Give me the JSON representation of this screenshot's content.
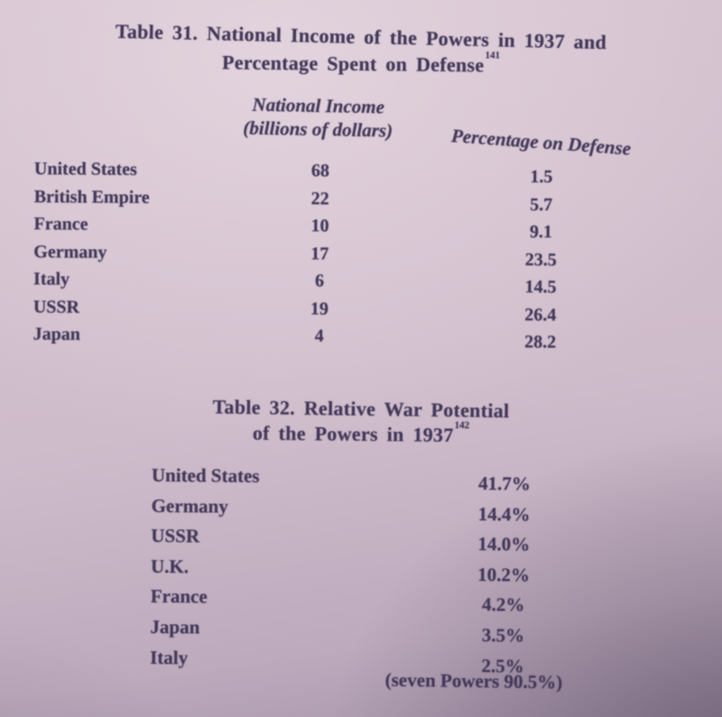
{
  "table31": {
    "title_line1": "Table 31. National Income of the Powers in 1937 and",
    "title_line2": "Percentage Spent on Defense",
    "footnote": "141",
    "col_income_line1": "National Income",
    "col_income_line2": "(billions of dollars)",
    "col_defense": "Percentage on Defense",
    "rows": [
      {
        "country": "United States",
        "income": "68",
        "defense": "1.5"
      },
      {
        "country": "British Empire",
        "income": "22",
        "defense": "5.7"
      },
      {
        "country": "France",
        "income": "10",
        "defense": "9.1"
      },
      {
        "country": "Germany",
        "income": "17",
        "defense": "23.5"
      },
      {
        "country": "Italy",
        "income": "6",
        "defense": "14.5"
      },
      {
        "country": "USSR",
        "income": "19",
        "defense": "26.4"
      },
      {
        "country": "Japan",
        "income": "4",
        "defense": "28.2"
      }
    ]
  },
  "table32": {
    "title_line1": "Table 32. Relative War Potential",
    "title_line2": "of the Powers in 1937",
    "footnote": "142",
    "rows": [
      {
        "country": "United States",
        "potential": "41.7%"
      },
      {
        "country": "Germany",
        "potential": "14.4%"
      },
      {
        "country": "USSR",
        "potential": "14.0%"
      },
      {
        "country": "U.K.",
        "potential": "10.2%"
      },
      {
        "country": "France",
        "potential": "4.2%"
      },
      {
        "country": "Japan",
        "potential": "3.5%"
      },
      {
        "country": "Italy",
        "potential": "2.5%"
      }
    ],
    "footer": "(seven Powers 90.5%)"
  },
  "colors": {
    "paper": "#d3c0cd",
    "ink": "#43395a",
    "corner_shadow": "#8e8095"
  }
}
